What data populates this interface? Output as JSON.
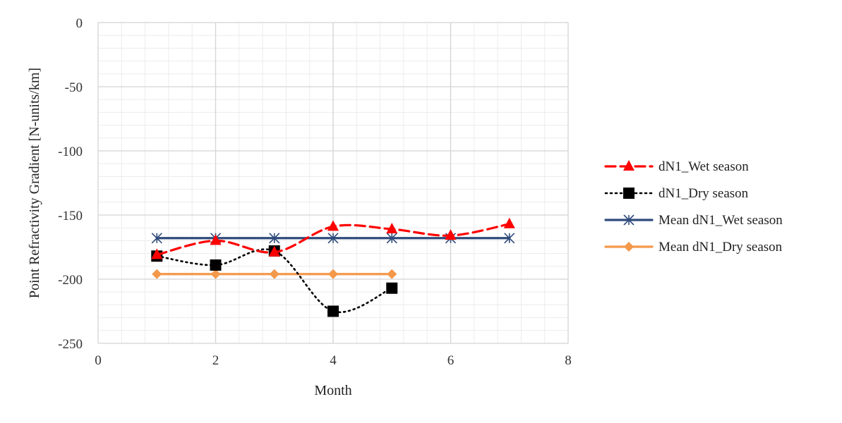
{
  "chart_data": {
    "type": "line",
    "title": "",
    "xlabel": "Month",
    "ylabel": "Point Refractivity Gradient [N-units/km]",
    "xlim": [
      0,
      8
    ],
    "ylim": [
      -250,
      0
    ],
    "x_ticks": [
      0,
      2,
      4,
      6,
      8
    ],
    "y_ticks": [
      0,
      -50,
      -100,
      -150,
      -200,
      -250
    ],
    "grid": "major and minor",
    "legend_position": "right",
    "series": [
      {
        "name": "dN1_Wet season",
        "color": "#ff0000",
        "line_style": "dashed",
        "marker": "triangle",
        "smooth": true,
        "x": [
          1,
          2,
          3,
          4,
          5,
          6,
          7
        ],
        "y": [
          -181,
          -170,
          -179,
          -159,
          -161,
          -166,
          -157
        ]
      },
      {
        "name": "dN1_Dry season",
        "color": "#000000",
        "line_style": "dotted",
        "marker": "square",
        "smooth": true,
        "x": [
          1,
          2,
          3,
          4,
          5
        ],
        "y": [
          -182,
          -189,
          -178,
          -225,
          -207
        ]
      },
      {
        "name": "Mean dN1_Wet season",
        "color": "#2f4b7c",
        "line_style": "solid",
        "marker": "asterisk",
        "smooth": false,
        "x": [
          1,
          2,
          3,
          4,
          5,
          6,
          7
        ],
        "y": [
          -168,
          -168,
          -168,
          -168,
          -168,
          -168,
          -168
        ]
      },
      {
        "name": "Mean dN1_Dry season",
        "color": "#f4984a",
        "line_style": "solid",
        "marker": "diamond",
        "smooth": false,
        "x": [
          1,
          2,
          3,
          4,
          5
        ],
        "y": [
          -196,
          -196,
          -196,
          -196,
          -196
        ]
      }
    ]
  }
}
